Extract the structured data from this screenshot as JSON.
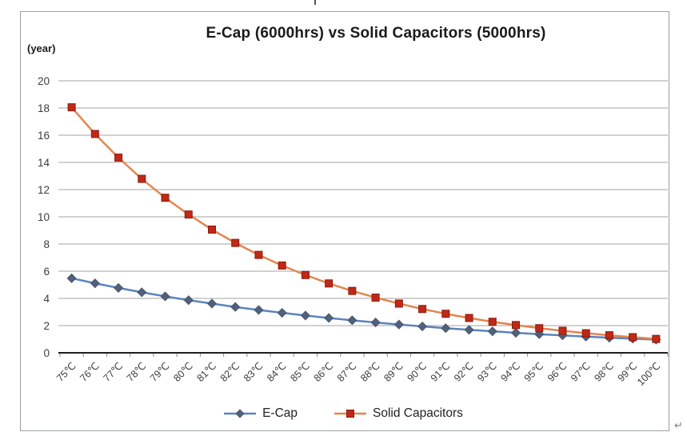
{
  "page": {
    "return_mark": "↵"
  },
  "chart_data": {
    "type": "line",
    "title": "E-Cap (6000hrs) vs Solid Capacitors (5000hrs)",
    "ylabel": "(year)",
    "xlabel": "",
    "ylim": [
      0,
      20
    ],
    "ytick_step": 2,
    "grid": "horizontal",
    "legend_position": "bottom",
    "categories": [
      "75℃",
      "76℃",
      "77℃",
      "78℃",
      "79℃",
      "80℃",
      "81℃",
      "82℃",
      "83℃",
      "84℃",
      "85℃",
      "86℃",
      "87℃",
      "88℃",
      "89℃",
      "90℃",
      "91℃",
      "92℃",
      "93℃",
      "94℃",
      "95℃",
      "96℃",
      "97℃",
      "98℃",
      "99℃",
      "100℃"
    ],
    "series": [
      {
        "name": "E-Cap",
        "marker": "diamond",
        "line_color": "#5b84bd",
        "marker_color": "#51607b",
        "marker_stroke": "#46536b",
        "values": [
          5.48,
          5.11,
          4.77,
          4.45,
          4.15,
          3.87,
          3.62,
          3.37,
          3.15,
          2.94,
          2.74,
          2.56,
          2.39,
          2.23,
          2.08,
          1.94,
          1.81,
          1.69,
          1.58,
          1.47,
          1.37,
          1.28,
          1.19,
          1.11,
          1.04,
          0.97
        ]
      },
      {
        "name": "Solid Capacitors",
        "marker": "square",
        "line_color": "#e5854e",
        "marker_color": "#c02817",
        "marker_stroke": "#8a1d0e",
        "values": [
          18.05,
          16.09,
          14.35,
          12.79,
          11.4,
          10.17,
          9.06,
          8.08,
          7.2,
          6.42,
          5.72,
          5.1,
          4.55,
          4.06,
          3.62,
          3.22,
          2.87,
          2.56,
          2.28,
          2.04,
          1.81,
          1.62,
          1.44,
          1.29,
          1.15,
          1.02
        ]
      }
    ]
  },
  "colors": {
    "gridline": "#a3a3a3",
    "axis": "#1f1f1f",
    "tick_mark": "#8c8c8c",
    "tick_label": "#3d3d3d",
    "frame_border": "#9aa0a6",
    "background": "#ffffff"
  }
}
